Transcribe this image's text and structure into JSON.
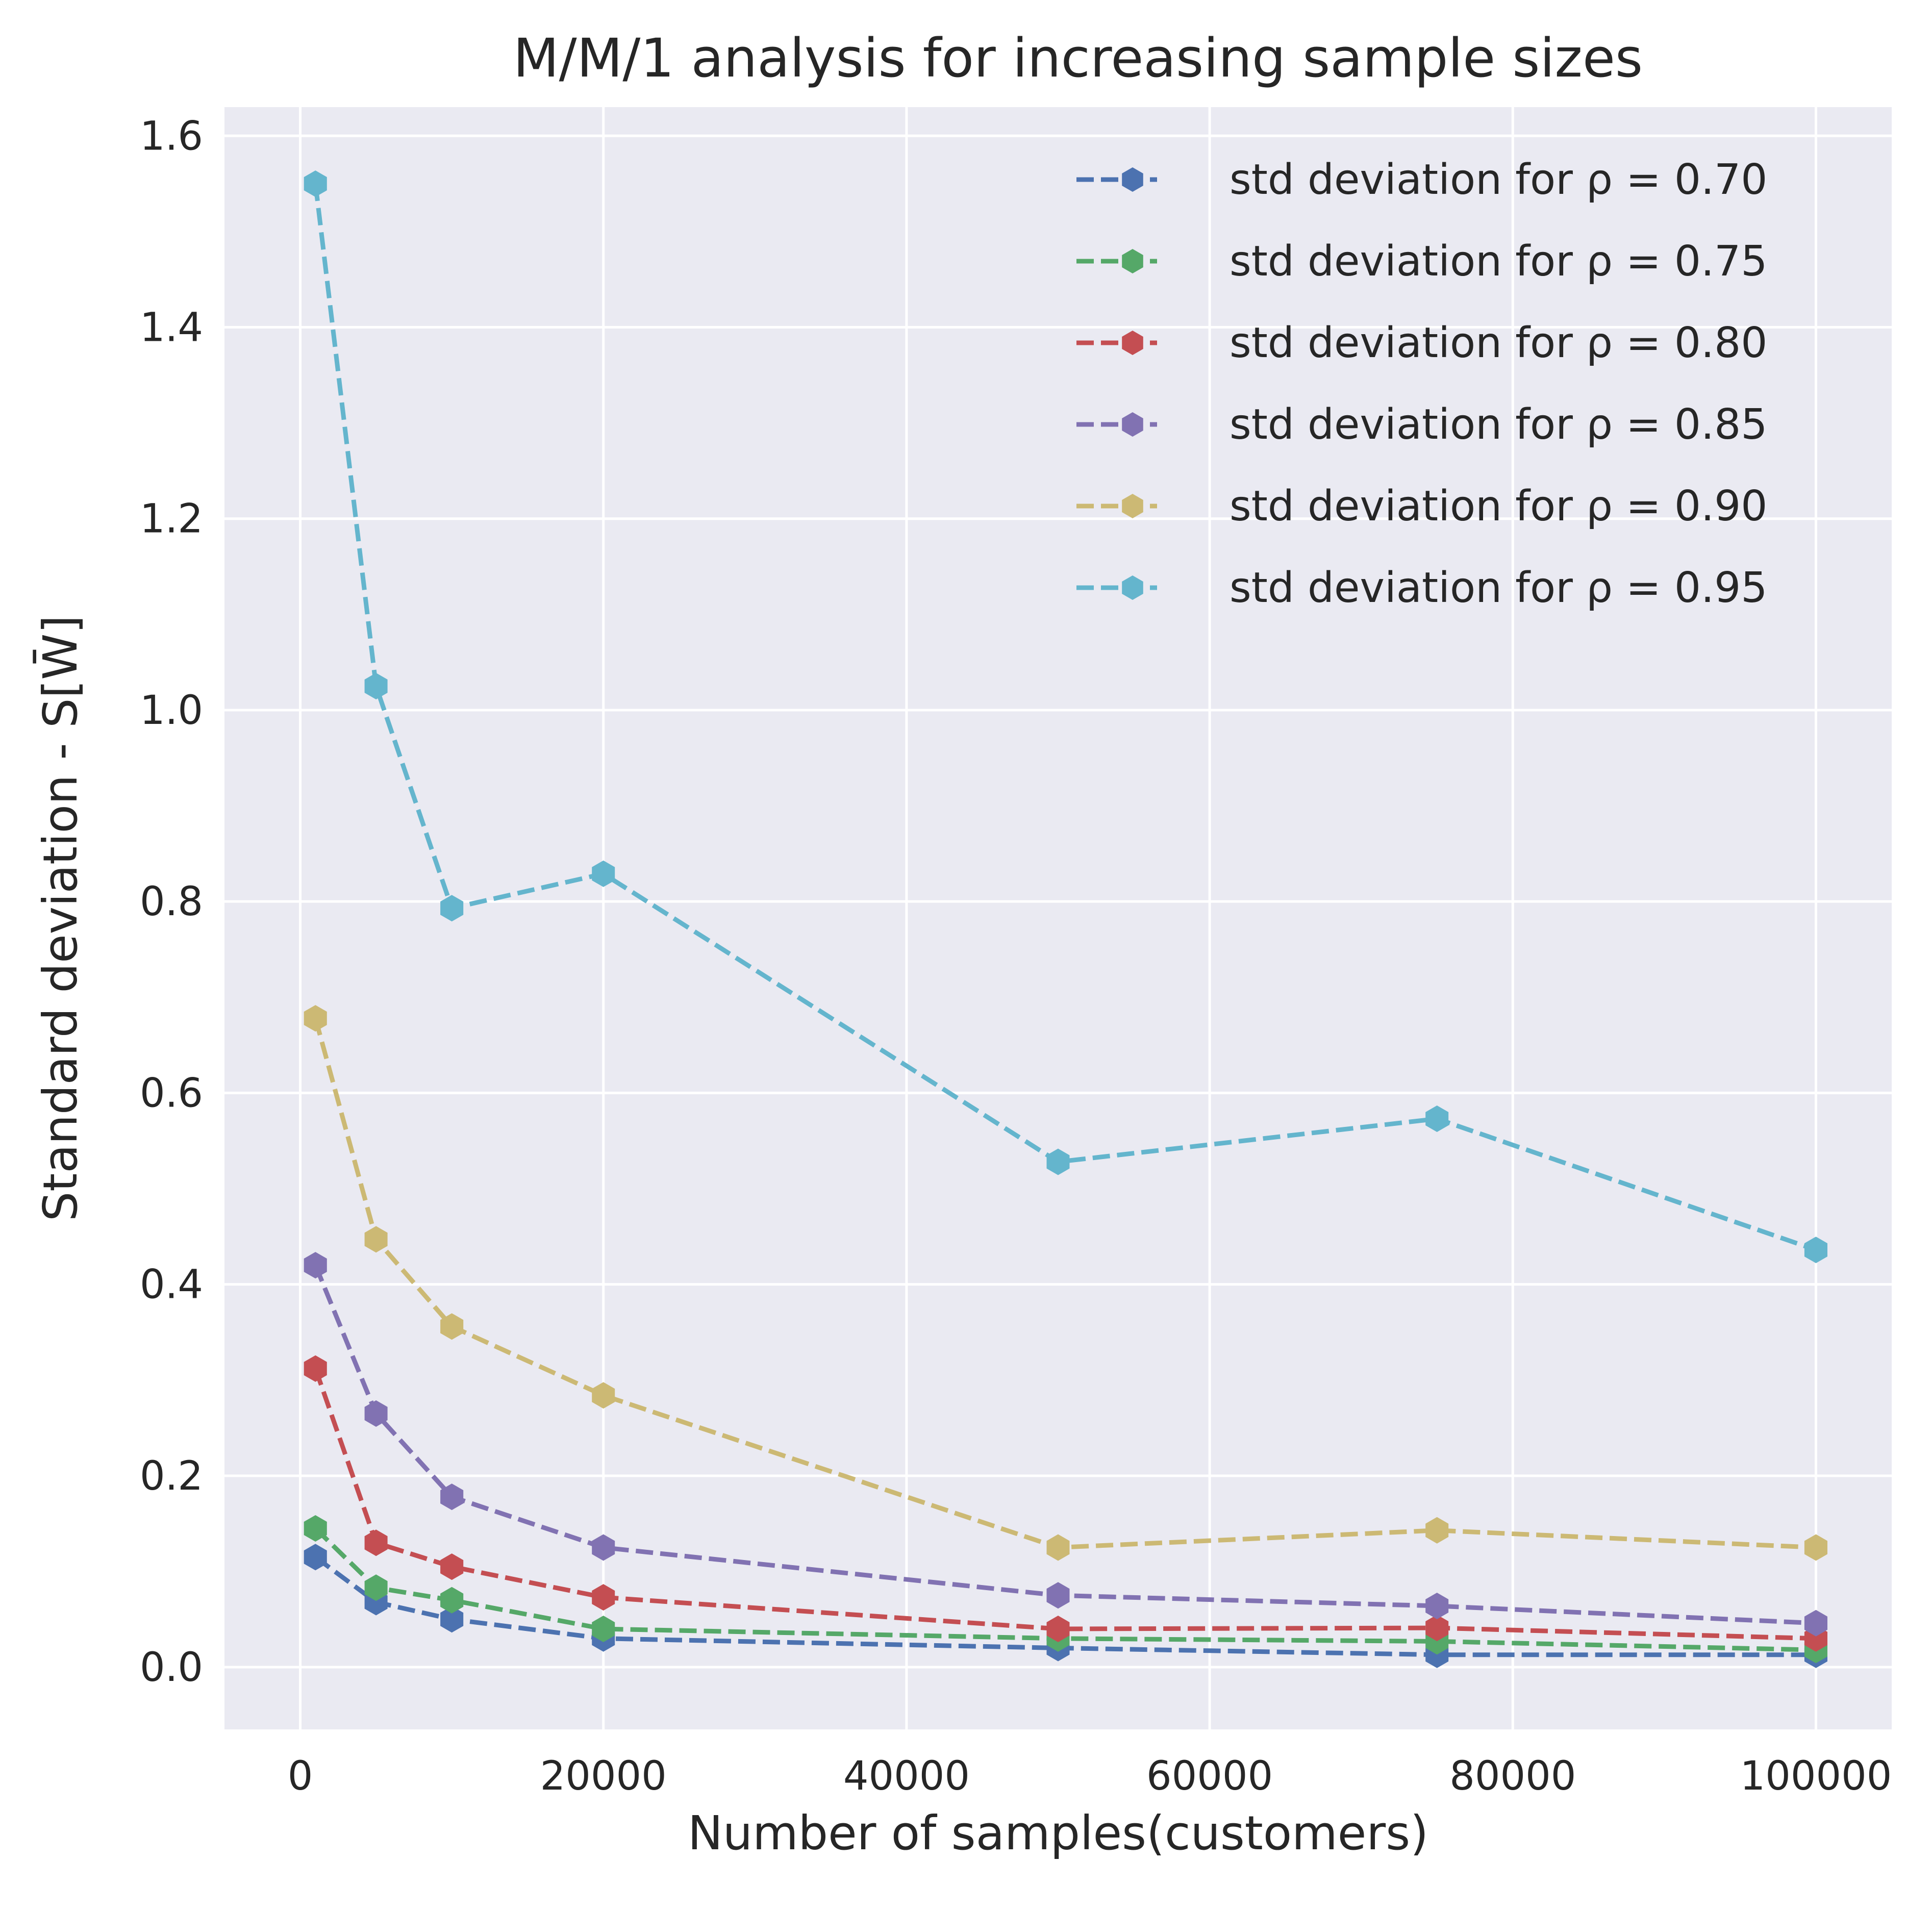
{
  "chart_data": {
    "type": "line",
    "title": "M/M/1 analysis for increasing sample sizes",
    "xlabel": "Number of samples(customers)",
    "ylabel": "Standard deviation - S[W̄]",
    "xlim": [
      -5000,
      105000
    ],
    "ylim": [
      -0.065,
      1.63
    ],
    "x_ticks": [
      0,
      20000,
      40000,
      60000,
      80000,
      100000
    ],
    "y_ticks": [
      0.0,
      0.2,
      0.4,
      0.6,
      0.8,
      1.0,
      1.2,
      1.4,
      1.6
    ],
    "grid": true,
    "legend_position": "top-right",
    "background": "#eaeaf2",
    "x": [
      1000,
      5000,
      10000,
      20000,
      50000,
      75000,
      100000
    ],
    "series": [
      {
        "name": "std deviation for ρ = 0.70",
        "color": "#4c72b0",
        "values": [
          0.115,
          0.068,
          0.05,
          0.03,
          0.02,
          0.013,
          0.013
        ]
      },
      {
        "name": "std deviation for ρ = 0.75",
        "color": "#55a868",
        "values": [
          0.145,
          0.083,
          0.07,
          0.04,
          0.03,
          0.027,
          0.018
        ]
      },
      {
        "name": "std deviation for ρ = 0.80",
        "color": "#c44e52",
        "values": [
          0.312,
          0.13,
          0.105,
          0.073,
          0.04,
          0.041,
          0.03
        ]
      },
      {
        "name": "std deviation for ρ = 0.85",
        "color": "#8172b2",
        "values": [
          0.42,
          0.265,
          0.178,
          0.125,
          0.075,
          0.064,
          0.046
        ]
      },
      {
        "name": "std deviation for ρ = 0.90",
        "color": "#ccb974",
        "values": [
          0.678,
          0.447,
          0.356,
          0.284,
          0.125,
          0.143,
          0.125
        ]
      },
      {
        "name": "std deviation for ρ = 0.95",
        "color": "#64b5cd",
        "values": [
          1.55,
          1.025,
          0.793,
          0.829,
          0.528,
          0.573,
          0.436
        ]
      }
    ]
  }
}
